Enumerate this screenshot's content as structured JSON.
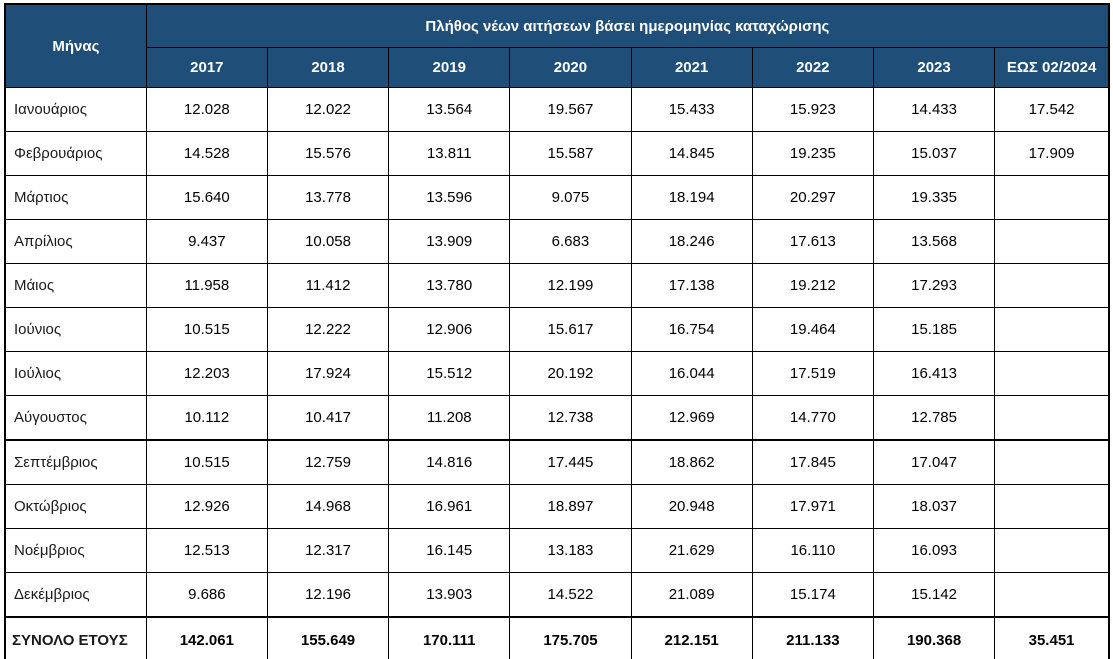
{
  "page": {
    "background": "#FFFFFF"
  },
  "table": {
    "corner_header": "Μήνας",
    "group_header": "Πλήθος νέων αιτήσεων βάσει ημερομηνίας καταχώρισης",
    "total_label": "ΣΥΝΟΛΟ ΕΤΟΥΣ",
    "colors": {
      "header_bg": "#1F4E79",
      "header_text": "#FFFFFF",
      "border": "#000000",
      "cell_text": "#000000"
    }
  },
  "chart_data": {
    "type": "table",
    "title": "Πλήθος νέων αιτήσεων βάσει ημερομηνίας καταχώρισης",
    "row_header": "Μήνας",
    "columns": [
      "2017",
      "2018",
      "2019",
      "2020",
      "2021",
      "2022",
      "2023",
      "ΕΩΣ 02/2024"
    ],
    "rows": [
      {
        "label": "Ιανουάριος",
        "values": [
          12028,
          12022,
          13564,
          19567,
          15433,
          15923,
          14433,
          17542
        ]
      },
      {
        "label": "Φεβρουάριος",
        "values": [
          14528,
          15576,
          13811,
          15587,
          14845,
          19235,
          15037,
          17909
        ]
      },
      {
        "label": "Μάρτιος",
        "values": [
          15640,
          13778,
          13596,
          9075,
          18194,
          20297,
          19335,
          null
        ]
      },
      {
        "label": "Απρίλιος",
        "values": [
          9437,
          10058,
          13909,
          6683,
          18246,
          17613,
          13568,
          null
        ]
      },
      {
        "label": "Μάιος",
        "values": [
          11958,
          11412,
          13780,
          12199,
          17138,
          19212,
          17293,
          null
        ]
      },
      {
        "label": "Ιούνιος",
        "values": [
          10515,
          12222,
          12906,
          15617,
          16754,
          19464,
          15185,
          null
        ]
      },
      {
        "label": "Ιούλιος",
        "values": [
          12203,
          17924,
          15512,
          20192,
          16044,
          17519,
          16413,
          null
        ]
      },
      {
        "label": "Αύγουστος",
        "values": [
          10112,
          10417,
          11208,
          12738,
          12969,
          14770,
          12785,
          null
        ]
      },
      {
        "label": "Σεπτέμβριος",
        "values": [
          10515,
          12759,
          14816,
          17445,
          18862,
          17845,
          17047,
          null
        ]
      },
      {
        "label": "Οκτώβριος",
        "values": [
          12926,
          14968,
          16961,
          18897,
          20948,
          17971,
          18037,
          null
        ]
      },
      {
        "label": "Νοέμβριος",
        "values": [
          12513,
          12317,
          16145,
          13183,
          21629,
          16110,
          16093,
          null
        ]
      },
      {
        "label": "Δεκέμβριος",
        "values": [
          9686,
          12196,
          13903,
          14522,
          21089,
          15174,
          15142,
          null
        ]
      }
    ],
    "total": {
      "label": "ΣΥΝΟΛΟ ΕΤΟΥΣ",
      "values": [
        142061,
        155649,
        170111,
        175705,
        212151,
        211133,
        190368,
        35451
      ]
    },
    "number_format": "thousands-dot",
    "section_break_before_row": 8,
    "legend": null,
    "grid": true
  }
}
